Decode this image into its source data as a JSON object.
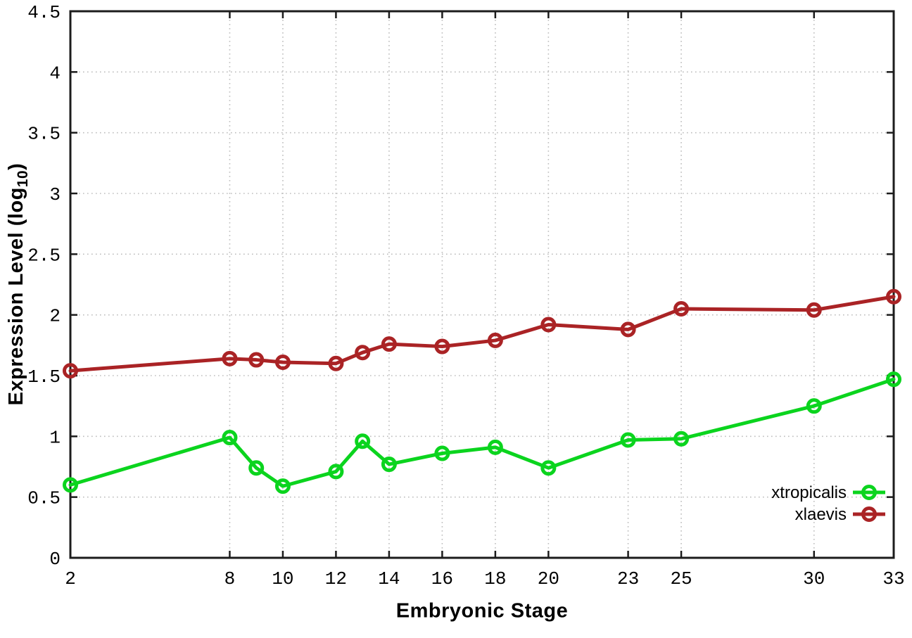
{
  "chart_data": {
    "type": "line",
    "title": "",
    "xlabel": "Embryonic Stage",
    "ylabel": "Expression Level (log10)",
    "ylabel_parts": {
      "prefix": "Expression Level (log",
      "sub": "10",
      "suffix": ")"
    },
    "x": [
      2,
      8,
      9,
      10,
      12,
      13,
      14,
      16,
      18,
      20,
      23,
      25,
      30,
      33
    ],
    "series": [
      {
        "name": "xtropicalis",
        "color": "#0bd41e",
        "values": [
          0.6,
          0.99,
          0.74,
          0.59,
          0.71,
          0.96,
          0.77,
          0.86,
          0.91,
          0.74,
          0.97,
          0.98,
          1.25,
          1.47
        ]
      },
      {
        "name": "xlaevis",
        "color": "#aa2325",
        "values": [
          1.54,
          1.64,
          1.63,
          1.61,
          1.6,
          1.69,
          1.76,
          1.74,
          1.79,
          1.92,
          1.88,
          2.05,
          2.04,
          2.15
        ]
      }
    ],
    "xlim": [
      2,
      33
    ],
    "ylim": [
      0,
      4.5
    ],
    "xticks": [
      2,
      8,
      10,
      12,
      14,
      16,
      18,
      20,
      23,
      25,
      30,
      33
    ],
    "xtick_labels": [
      "2",
      "8",
      "10",
      "12",
      "14",
      "16",
      "18",
      "20",
      "23",
      "25",
      "30",
      "33"
    ],
    "yticks": [
      0,
      0.5,
      1,
      1.5,
      2,
      2.5,
      3,
      3.5,
      4,
      4.5
    ],
    "ytick_labels": [
      "0",
      "0.5",
      "1",
      "1.5",
      "2",
      "2.5",
      "3",
      "3.5",
      "4",
      "4.5"
    ],
    "grid": true,
    "legend_position": "inside-right-bottom",
    "legend_entries": [
      "xtropicalis",
      "xlaevis"
    ],
    "colors": {
      "background": "#ffffff",
      "border": "#1c1c1c",
      "grid": "#bdbdbd",
      "text": "#000000"
    }
  }
}
